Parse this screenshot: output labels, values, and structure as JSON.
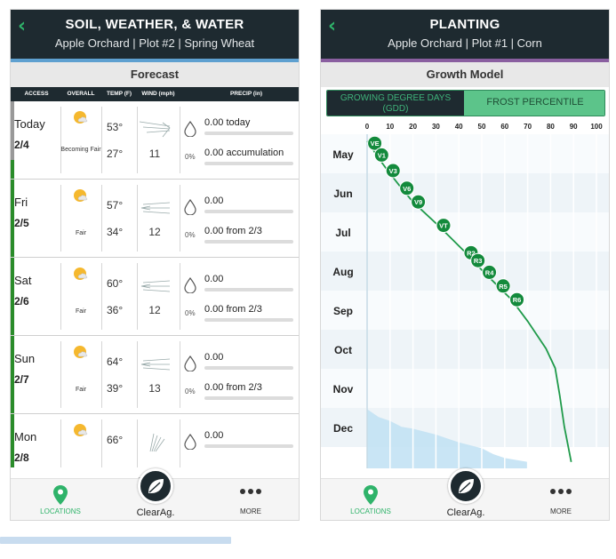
{
  "left": {
    "title": "SOIL, WEATHER, & WATER",
    "subtitle": "Apple Orchard | Plot #2 | Spring Wheat",
    "accent_color": "#5ea0d0",
    "section": "Forecast",
    "columns": [
      "ACCESS",
      "OVERALL",
      "TEMP (F)",
      "WIND (mph)",
      "PRECIP (in)"
    ],
    "days": [
      {
        "day": "Today",
        "date": "2/4",
        "overall": "Becoming Fair",
        "hi": "53°",
        "lo": "27°",
        "wind": "11",
        "pct": "0%",
        "precip1": "0.00 today",
        "precip2": "0.00 accumulation"
      },
      {
        "day": "Fri",
        "date": "2/5",
        "overall": "Fair",
        "hi": "57°",
        "lo": "34°",
        "wind": "12",
        "pct": "0%",
        "precip1": "0.00",
        "precip2": "0.00 from 2/3"
      },
      {
        "day": "Sat",
        "date": "2/6",
        "overall": "Fair",
        "hi": "60°",
        "lo": "36°",
        "wind": "12",
        "pct": "0%",
        "precip1": "0.00",
        "precip2": "0.00 from 2/3"
      },
      {
        "day": "Sun",
        "date": "2/7",
        "overall": "Fair",
        "hi": "64°",
        "lo": "39°",
        "wind": "13",
        "pct": "0%",
        "precip1": "0.00",
        "precip2": "0.00 from 2/3"
      },
      {
        "day": "Mon",
        "date": "2/8",
        "overall": "",
        "hi": "66°",
        "lo": "",
        "wind": "",
        "pct": "",
        "precip1": "0.00",
        "precip2": ""
      }
    ],
    "page_dots": 4,
    "active_dot": 1
  },
  "right": {
    "title": "PLANTING",
    "subtitle": "Apple Orchard | Plot #1 | Corn",
    "accent_color": "#8a5fa0",
    "section": "Growth Model",
    "seg_a": "GROWING DEGREE DAYS (GDD)",
    "seg_b": "FROST PERCENTILE",
    "page_dots": 2,
    "active_dot": 0
  },
  "nav": {
    "locations": "LOCATIONS",
    "brand": "ClearAg.",
    "more": "MORE"
  },
  "colors": {
    "green": "#2fb36a",
    "dark": "#1e2a30",
    "line": "#1f9a4a"
  },
  "chart_data": {
    "type": "line",
    "title": "Growth Model",
    "x_ticks": [
      0,
      10,
      20,
      30,
      40,
      50,
      60,
      70,
      80,
      90,
      100
    ],
    "months": [
      "May",
      "Jun",
      "Jul",
      "Aug",
      "Sep",
      "Oct",
      "Nov",
      "Dec"
    ],
    "stages": [
      {
        "label": "VE",
        "x": 1,
        "y": 0.05
      },
      {
        "label": "V1",
        "x": 4,
        "y": 0.35
      },
      {
        "label": "V3",
        "x": 9,
        "y": 0.75
      },
      {
        "label": "V6",
        "x": 15,
        "y": 1.2
      },
      {
        "label": "V9",
        "x": 20,
        "y": 1.55
      },
      {
        "label": "VT",
        "x": 31,
        "y": 2.15
      },
      {
        "label": "R2",
        "x": 43,
        "y": 2.85
      },
      {
        "label": "R3",
        "x": 46,
        "y": 3.05
      },
      {
        "label": "R4",
        "x": 51,
        "y": 3.35
      },
      {
        "label": "R5",
        "x": 57,
        "y": 3.7
      },
      {
        "label": "R6",
        "x": 63,
        "y": 4.05
      }
    ],
    "curve": [
      [
        0,
        0
      ],
      [
        1,
        0.05
      ],
      [
        4,
        0.35
      ],
      [
        9,
        0.75
      ],
      [
        15,
        1.2
      ],
      [
        20,
        1.55
      ],
      [
        31,
        2.15
      ],
      [
        43,
        2.85
      ],
      [
        46,
        3.05
      ],
      [
        51,
        3.35
      ],
      [
        57,
        3.7
      ],
      [
        63,
        4.05
      ],
      [
        70,
        4.6
      ],
      [
        78,
        5.3
      ],
      [
        82,
        5.8
      ],
      [
        84,
        6.5
      ],
      [
        86,
        7.3
      ],
      [
        88,
        7.9
      ],
      [
        89,
        8.2
      ]
    ],
    "frost_band": [
      [
        0,
        6.85
      ],
      [
        5,
        7.05
      ],
      [
        10,
        7.15
      ],
      [
        15,
        7.3
      ],
      [
        20,
        7.35
      ],
      [
        30,
        7.5
      ],
      [
        40,
        7.7
      ],
      [
        50,
        7.85
      ],
      [
        55,
        8.0
      ],
      [
        60,
        8.1
      ],
      [
        70,
        8.2
      ]
    ]
  }
}
